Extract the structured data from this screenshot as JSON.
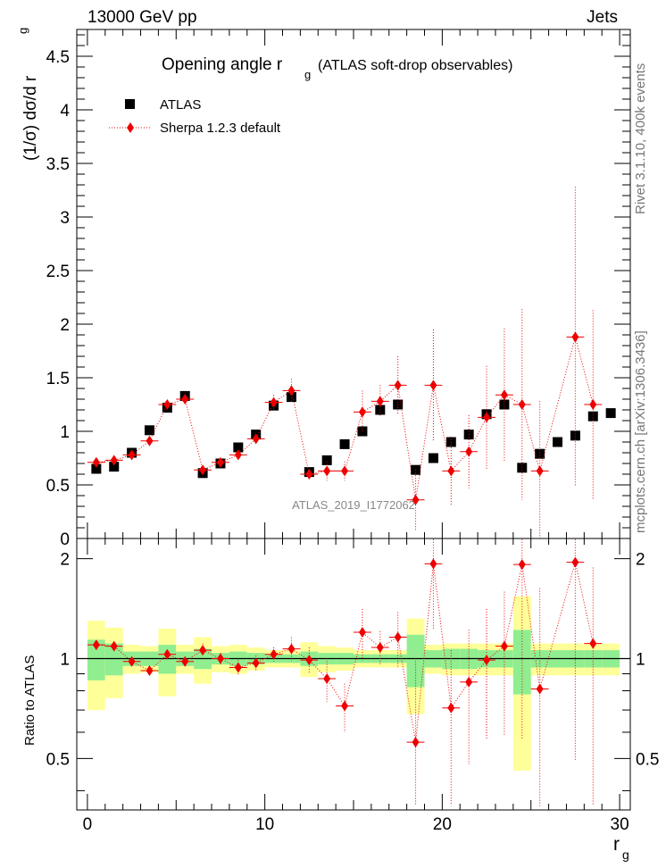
{
  "header": {
    "left": "13000 GeV pp",
    "right": "Jets"
  },
  "side": {
    "rivet": "Rivet 3.1.10,  400k events",
    "mcplots": "mcplots.cern.ch [arXiv:1306.3436]"
  },
  "watermark": "ATLAS_2019_I1772062",
  "legend": {
    "atlas": "ATLAS",
    "sherpa": "Sherpa 1.2.3 default"
  },
  "colors": {
    "data": "#000000",
    "mc": "#ee0000",
    "band_inner": "#90ee90",
    "band_outer": "#ffff99"
  },
  "chart_data": [
    {
      "type": "scatter",
      "panel": "main",
      "title": "Opening angle r",
      "title_sub": "g",
      "title_rest": "(ATLAS soft-drop observables)",
      "xlabel": "r",
      "xlabel_sub": "g",
      "ylabel": "(1/σ) dσ/d r",
      "ylabel_sub": "g",
      "xlim": [
        -0.6,
        30.6
      ],
      "ylim": [
        0,
        4.75
      ],
      "yticks": [
        "0",
        "0.5",
        "1",
        "1.5",
        "2",
        "2.5",
        "3",
        "3.5",
        "4",
        "4.5"
      ],
      "xticks": [
        "0",
        "10",
        "20",
        "30"
      ],
      "series": [
        {
          "name": "ATLAS",
          "marker": "square",
          "x": [
            0.5,
            1.5,
            2.5,
            3.5,
            4.5,
            5.5,
            6.5,
            7.5,
            8.5,
            9.5,
            10.5,
            11.5,
            12.5,
            13.5,
            14.5,
            15.5,
            16.5,
            17.5,
            18.5,
            19.5,
            20.5,
            21.5,
            22.5,
            23.5,
            24.5,
            25.5,
            26.5,
            27.5,
            28.5,
            29.5
          ],
          "y": [
            0.65,
            0.67,
            0.8,
            1.01,
            1.22,
            1.33,
            0.61,
            0.7,
            0.85,
            0.97,
            1.24,
            1.32,
            0.62,
            0.73,
            0.88,
            1.0,
            1.2,
            1.25,
            0.64,
            0.75,
            0.9,
            0.97,
            1.16,
            1.25,
            0.66,
            0.79,
            0.9,
            0.96,
            1.14,
            1.17
          ]
        },
        {
          "name": "Sherpa 1.2.3 default",
          "marker": "diamond",
          "x": [
            0.5,
            1.5,
            2.5,
            3.5,
            4.5,
            5.5,
            6.5,
            7.5,
            8.5,
            9.5,
            10.5,
            11.5,
            12.5,
            13.5,
            14.5,
            15.5,
            16.5,
            17.5,
            18.5,
            19.5,
            20.5,
            21.5,
            22.5,
            23.5,
            24.5,
            25.5,
            27.5,
            28.5
          ],
          "y": [
            0.71,
            0.73,
            0.78,
            0.91,
            1.25,
            1.3,
            0.64,
            0.71,
            0.78,
            0.93,
            1.27,
            1.38,
            0.6,
            0.63,
            0.63,
            1.18,
            1.28,
            1.43,
            0.36,
            1.43,
            0.63,
            0.81,
            1.13,
            1.34,
            1.25,
            0.63,
            1.88,
            1.25
          ],
          "yerr": [
            0.02,
            0.02,
            0.02,
            0.03,
            0.03,
            0.04,
            0.03,
            0.03,
            0.04,
            0.04,
            0.07,
            0.11,
            0.05,
            0.09,
            0.09,
            0.2,
            0.15,
            0.27,
            0.28,
            0.52,
            0.32,
            0.34,
            0.48,
            0.62,
            0.89,
            0.65,
            1.4,
            0.88
          ]
        }
      ]
    },
    {
      "type": "scatter",
      "panel": "ratio",
      "ylabel": "Ratio to ATLAS",
      "xlim": [
        -0.6,
        30.6
      ],
      "ylim": [
        0.35,
        2.3
      ],
      "yticks": [
        "0.5",
        "1",
        "2"
      ],
      "xticks": [
        "0",
        "10",
        "20",
        "30"
      ],
      "band": {
        "x": [
          0.5,
          1.5,
          2.5,
          3.5,
          4.5,
          5.5,
          6.5,
          7.5,
          8.5,
          9.5,
          10.5,
          11.5,
          12.5,
          13.5,
          14.5,
          15.5,
          16.5,
          17.5,
          18.5,
          19.5,
          20.5,
          21.5,
          22.5,
          23.5,
          24.5,
          25.5,
          26.5,
          27.5,
          28.5,
          29.5
        ],
        "inner_half": [
          0.14,
          0.11,
          0.05,
          0.05,
          0.1,
          0.05,
          0.07,
          0.04,
          0.05,
          0.04,
          0.03,
          0.03,
          0.05,
          0.04,
          0.04,
          0.03,
          0.03,
          0.03,
          0.18,
          0.06,
          0.07,
          0.07,
          0.06,
          0.06,
          0.22,
          0.06,
          0.06,
          0.06,
          0.06,
          0.06
        ],
        "outer_half": [
          0.3,
          0.24,
          0.1,
          0.09,
          0.23,
          0.1,
          0.16,
          0.09,
          0.1,
          0.08,
          0.06,
          0.06,
          0.12,
          0.09,
          0.08,
          0.06,
          0.06,
          0.06,
          0.32,
          0.1,
          0.11,
          0.11,
          0.11,
          0.11,
          0.54,
          0.11,
          0.11,
          0.11,
          0.11,
          0.11
        ]
      },
      "series": [
        {
          "name": "Sherpa 1.2.3 default",
          "marker": "diamond",
          "x": [
            0.5,
            1.5,
            2.5,
            3.5,
            4.5,
            5.5,
            6.5,
            7.5,
            8.5,
            9.5,
            10.5,
            11.5,
            12.5,
            13.5,
            14.5,
            15.5,
            16.5,
            17.5,
            18.5,
            19.5,
            20.5,
            21.5,
            22.5,
            23.5,
            24.5,
            25.5,
            27.5,
            28.5
          ],
          "y": [
            1.1,
            1.09,
            0.98,
            0.92,
            1.03,
            0.98,
            1.06,
            1.0,
            0.94,
            0.97,
            1.03,
            1.07,
            0.99,
            0.87,
            0.72,
            1.2,
            1.08,
            1.16,
            0.56,
            1.93,
            0.71,
            0.85,
            0.99,
            1.09,
            1.92,
            0.81,
            1.95,
            1.11
          ],
          "yerr": [
            0.03,
            0.03,
            0.03,
            0.03,
            0.03,
            0.03,
            0.05,
            0.04,
            0.05,
            0.05,
            0.05,
            0.09,
            0.09,
            0.13,
            0.12,
            0.21,
            0.13,
            0.22,
            0.44,
            0.7,
            0.35,
            0.37,
            0.42,
            0.5,
            1.35,
            0.82,
            1.46,
            0.77
          ]
        }
      ]
    }
  ]
}
